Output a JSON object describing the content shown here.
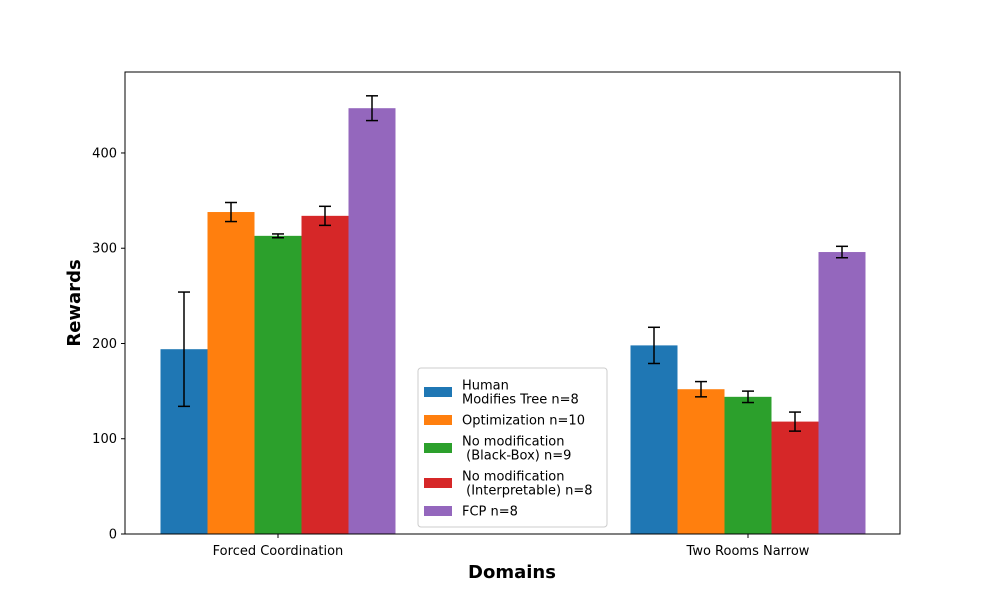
{
  "chart_data": {
    "type": "bar",
    "title": "",
    "xlabel": "Domains",
    "ylabel": "Rewards",
    "categories": [
      "Forced Coordination",
      "Two Rooms Narrow"
    ],
    "ylim": [
      0,
      485
    ],
    "yticks": [
      0,
      100,
      200,
      300,
      400
    ],
    "legend_position": "lower-center",
    "series": [
      {
        "name": "Human\nModifies Tree n=8",
        "color": "#1f77b4",
        "values": [
          194,
          198
        ],
        "errors": [
          60,
          19
        ]
      },
      {
        "name": "Optimization n=10",
        "color": "#ff7f0e",
        "values": [
          338,
          152
        ],
        "errors": [
          10,
          8
        ]
      },
      {
        "name": "No modification\n (Black-Box) n=9",
        "color": "#2ca02c",
        "values": [
          313,
          144
        ],
        "errors": [
          2,
          6
        ]
      },
      {
        "name": "No modification\n (Interpretable) n=8",
        "color": "#d62728",
        "values": [
          334,
          118
        ],
        "errors": [
          10,
          10
        ]
      },
      {
        "name": "FCP n=8",
        "color": "#9467bd",
        "values": [
          447,
          296
        ],
        "errors": [
          13,
          6
        ]
      }
    ]
  }
}
